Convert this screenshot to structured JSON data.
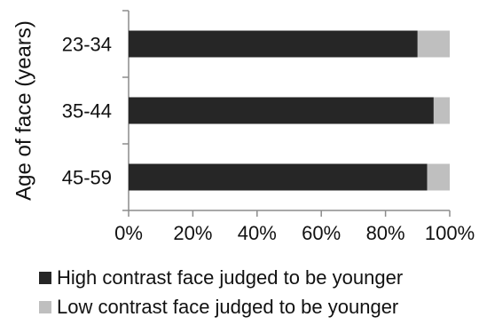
{
  "chart_data": {
    "type": "bar",
    "orientation": "horizontal",
    "stacked": true,
    "title": "",
    "ylabel": "Age of face (years)",
    "xlabel": "",
    "categories": [
      "23-34",
      "35-44",
      "45-59"
    ],
    "series": [
      {
        "name": "High contrast face judged to be younger",
        "color": "#262626",
        "values": [
          90,
          95,
          93
        ]
      },
      {
        "name": "Low contrast face judged to be younger",
        "color": "#bfbfbf",
        "values": [
          10,
          5,
          7
        ]
      }
    ],
    "xlim": [
      0,
      100
    ],
    "xticks": [
      "0%",
      "20%",
      "40%",
      "60%",
      "80%",
      "100%"
    ],
    "grid": false,
    "legend_position": "bottom"
  }
}
